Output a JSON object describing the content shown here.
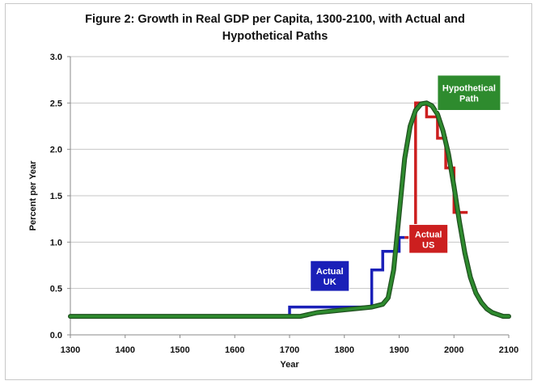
{
  "chart_data": {
    "type": "line",
    "title_line1": "Figure 2: Growth in Real GDP per Capita, 1300-2100, with Actual and",
    "title_line2": "Hypothetical Paths",
    "xlabel": "Year",
    "ylabel": "Percent per Year",
    "xlim": [
      1300,
      2100
    ],
    "ylim": [
      0,
      3.0
    ],
    "x_ticks": [
      1300,
      1400,
      1500,
      1600,
      1700,
      1800,
      1900,
      2000,
      2100
    ],
    "y_ticks": [
      "0.0",
      "0.5",
      "1.0",
      "1.5",
      "2.0",
      "2.5",
      "3.0"
    ],
    "grid": "horizontal",
    "colors": {
      "actual_uk": "#1a20b8",
      "actual_us": "#cc1f1f",
      "hypothetical": "#2e8b2e",
      "hypothetical_outline": "#1f4f1f",
      "grid": "#c6c6c6"
    },
    "series": [
      {
        "name": "Actual UK",
        "key": "actual_uk",
        "step": true,
        "points": [
          [
            1300,
            0.2
          ],
          [
            1700,
            0.2
          ],
          [
            1700,
            0.3
          ],
          [
            1850,
            0.3
          ],
          [
            1850,
            0.7
          ],
          [
            1870,
            0.7
          ],
          [
            1870,
            0.9
          ],
          [
            1900,
            0.9
          ],
          [
            1900,
            1.05
          ],
          [
            1910,
            1.05
          ]
        ]
      },
      {
        "name": "Actual US",
        "key": "actual_us",
        "step": true,
        "points": [
          [
            1910,
            1.05
          ],
          [
            1930,
            1.05
          ],
          [
            1930,
            2.5
          ],
          [
            1950,
            2.5
          ],
          [
            1950,
            2.35
          ],
          [
            1970,
            2.35
          ],
          [
            1970,
            2.12
          ],
          [
            1985,
            2.12
          ],
          [
            1985,
            1.8
          ],
          [
            2000,
            1.8
          ],
          [
            2000,
            1.32
          ],
          [
            2025,
            1.32
          ]
        ]
      },
      {
        "name": "Hypothetical Path",
        "key": "hypothetical",
        "step": false,
        "points": [
          [
            1300,
            0.2
          ],
          [
            1720,
            0.2
          ],
          [
            1750,
            0.24
          ],
          [
            1800,
            0.27
          ],
          [
            1850,
            0.3
          ],
          [
            1870,
            0.33
          ],
          [
            1880,
            0.4
          ],
          [
            1890,
            0.7
          ],
          [
            1900,
            1.3
          ],
          [
            1910,
            1.9
          ],
          [
            1920,
            2.25
          ],
          [
            1930,
            2.42
          ],
          [
            1940,
            2.49
          ],
          [
            1950,
            2.5
          ],
          [
            1960,
            2.47
          ],
          [
            1970,
            2.38
          ],
          [
            1980,
            2.2
          ],
          [
            1990,
            1.95
          ],
          [
            2000,
            1.6
          ],
          [
            2010,
            1.22
          ],
          [
            2020,
            0.88
          ],
          [
            2030,
            0.62
          ],
          [
            2040,
            0.45
          ],
          [
            2050,
            0.35
          ],
          [
            2060,
            0.28
          ],
          [
            2070,
            0.24
          ],
          [
            2080,
            0.22
          ],
          [
            2090,
            0.2
          ],
          [
            2100,
            0.2
          ]
        ]
      }
    ],
    "annotations": [
      {
        "key": "uk",
        "line1": "Actual",
        "line2": "UK",
        "color_key": "actual_uk",
        "x": 1738,
        "y_top": 0.8,
        "y_bottom": 0.47
      },
      {
        "key": "us",
        "line1": "Actual",
        "line2": "US",
        "color_key": "actual_us",
        "x": 1918,
        "y_top": 1.19,
        "y_bottom": 0.88
      },
      {
        "key": "hyp",
        "line1": "Hypothetical",
        "line2": "Path",
        "color_key": "hypothetical",
        "x": 1970,
        "y_top": 2.8,
        "y_bottom": 2.42
      }
    ]
  }
}
